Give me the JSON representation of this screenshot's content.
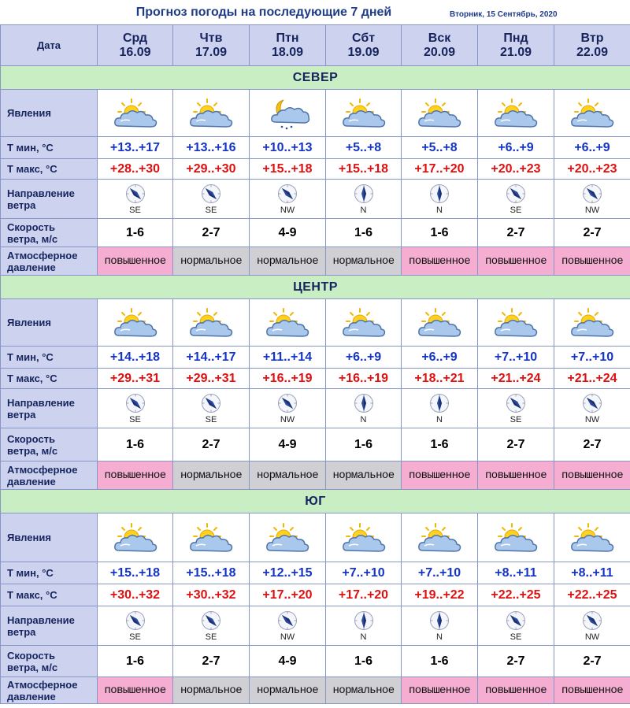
{
  "title": "Прогноз погоды на последующие 7 дней",
  "current_date": "Вторник, 15 Сентябрь, 2020",
  "header": {
    "date_label": "Дата"
  },
  "row_labels": {
    "phenomena": "Явления",
    "tmin": "Т мин, °С",
    "tmax": "Т макс, °С",
    "wind_dir_1": "Направление",
    "wind_dir_2": "ветра",
    "wind_speed_1": "Скорость",
    "wind_speed_2": "ветра, м/с",
    "pressure_1": "Атмосферное",
    "pressure_2": "давление"
  },
  "days": [
    {
      "name": "Срд",
      "date": "16.09"
    },
    {
      "name": "Чтв",
      "date": "17.09"
    },
    {
      "name": "Птн",
      "date": "18.09"
    },
    {
      "name": "Сбт",
      "date": "19.09"
    },
    {
      "name": "Вск",
      "date": "20.09"
    },
    {
      "name": "Пнд",
      "date": "21.09"
    },
    {
      "name": "Втр",
      "date": "22.09"
    }
  ],
  "icons": [
    "partly-cloudy-icon",
    "partly-cloudy-icon",
    "night-cloud-rain-icon",
    "partly-cloudy-icon",
    "partly-cloudy-icon",
    "partly-cloudy-icon",
    "partly-cloudy-icon"
  ],
  "colors": {
    "tmin": "#1434c8",
    "tmax": "#e01010",
    "pressure_high": "#f5aed1",
    "pressure_normal": "#cfcfd4",
    "region_band": "#c9eec3",
    "label_bg": "#cdd3ee"
  },
  "regions": [
    {
      "name": "СЕВЕР",
      "tmin": [
        "+13..+17",
        "+13..+16",
        "+10..+13",
        "+5..+8",
        "+5..+8",
        "+6..+9",
        "+6..+9"
      ],
      "tmax": [
        "+28..+30",
        "+29..+30",
        "+15..+18",
        "+15..+18",
        "+17..+20",
        "+20..+23",
        "+20..+23"
      ],
      "wind_dir": [
        "SE",
        "SE",
        "NW",
        "N",
        "N",
        "SE",
        "NW"
      ],
      "wind_speed": [
        "1-6",
        "2-7",
        "4-9",
        "1-6",
        "1-6",
        "2-7",
        "2-7"
      ],
      "pressure": [
        "повышенное",
        "нормальное",
        "нормальное",
        "нормальное",
        "повышенное",
        "повышенное",
        "повышенное"
      ],
      "pressure_level": [
        "high",
        "normal",
        "normal",
        "normal",
        "high",
        "high",
        "high"
      ]
    },
    {
      "name": "ЦЕНТР",
      "tmin": [
        "+14..+18",
        "+14..+17",
        "+11..+14",
        "+6..+9",
        "+6..+9",
        "+7..+10",
        "+7..+10"
      ],
      "tmax": [
        "+29..+31",
        "+29..+31",
        "+16..+19",
        "+16..+19",
        "+18..+21",
        "+21..+24",
        "+21..+24"
      ],
      "wind_dir": [
        "SE",
        "SE",
        "NW",
        "N",
        "N",
        "SE",
        "NW"
      ],
      "wind_speed": [
        "1-6",
        "2-7",
        "4-9",
        "1-6",
        "1-6",
        "2-7",
        "2-7"
      ],
      "pressure": [
        "повышенное",
        "нормальное",
        "нормальное",
        "нормальное",
        "повышенное",
        "повышенное",
        "повышенное"
      ],
      "pressure_level": [
        "high",
        "normal",
        "normal",
        "normal",
        "high",
        "high",
        "high"
      ],
      "icons": [
        "partly-cloudy-icon",
        "partly-cloudy-icon",
        "partly-cloudy-icon",
        "partly-cloudy-icon",
        "partly-cloudy-icon",
        "partly-cloudy-icon",
        "partly-cloudy-icon"
      ]
    },
    {
      "name": "ЮГ",
      "tmin": [
        "+15..+18",
        "+15..+18",
        "+12..+15",
        "+7..+10",
        "+7..+10",
        "+8..+11",
        "+8..+11"
      ],
      "tmax": [
        "+30..+32",
        "+30..+32",
        "+17..+20",
        "+17..+20",
        "+19..+22",
        "+22..+25",
        "+22..+25"
      ],
      "wind_dir": [
        "SE",
        "SE",
        "NW",
        "N",
        "N",
        "SE",
        "NW"
      ],
      "wind_speed": [
        "1-6",
        "2-7",
        "4-9",
        "1-6",
        "1-6",
        "2-7",
        "2-7"
      ],
      "pressure": [
        "повышенное",
        "нормальное",
        "нормальное",
        "нормальное",
        "повышенное",
        "повышенное",
        "повышенное"
      ],
      "pressure_level": [
        "high",
        "normal",
        "normal",
        "normal",
        "high",
        "high",
        "high"
      ],
      "icons": [
        "partly-cloudy-icon",
        "partly-cloudy-icon",
        "partly-cloudy-icon",
        "partly-cloudy-icon",
        "partly-cloudy-icon",
        "partly-cloudy-icon",
        "partly-cloudy-icon"
      ]
    }
  ]
}
